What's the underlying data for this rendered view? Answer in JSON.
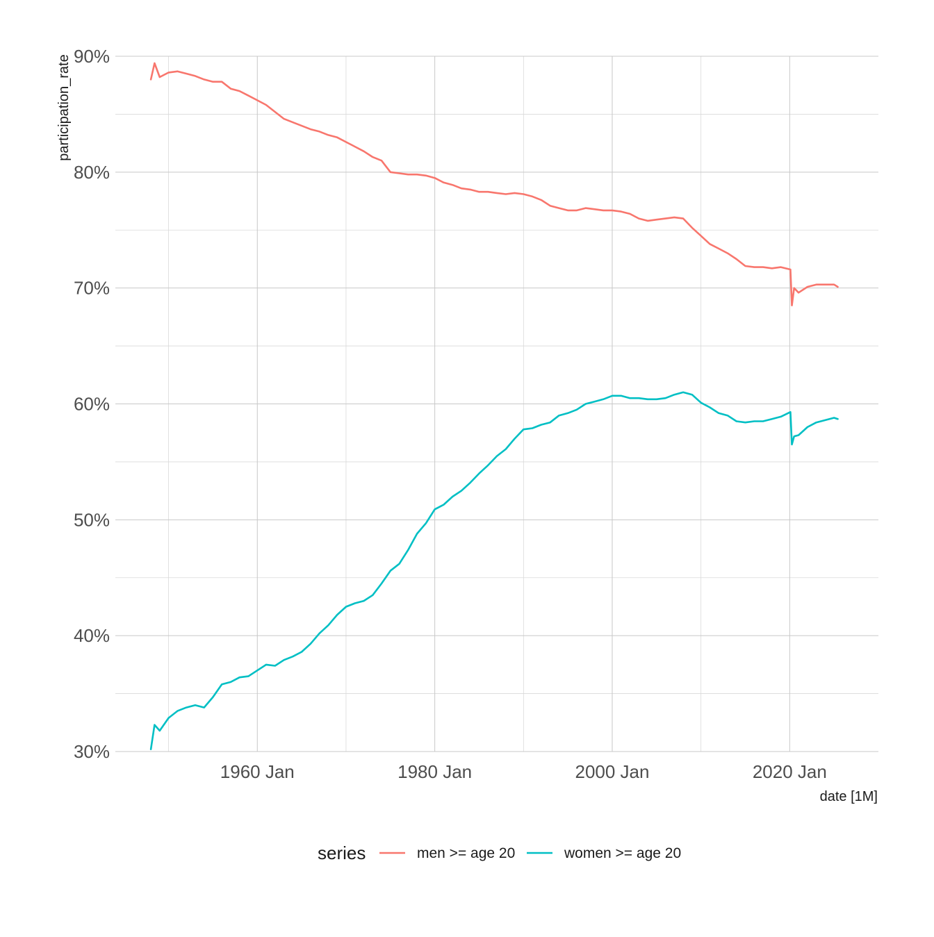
{
  "chart_data": {
    "type": "line",
    "xlabel": "date [1M]",
    "ylabel": "participation_rate",
    "xlim": [
      "1944-01",
      "2030-01"
    ],
    "ylim": [
      0.3,
      0.9
    ],
    "x_ticks": [
      {
        "value": "1960-01",
        "label": "1960 Jan"
      },
      {
        "value": "1980-01",
        "label": "1980 Jan"
      },
      {
        "value": "2000-01",
        "label": "2000 Jan"
      },
      {
        "value": "2020-01",
        "label": "2020 Jan"
      }
    ],
    "x_minor_ticks": [
      "1950-01",
      "1970-01",
      "1990-01",
      "2010-01"
    ],
    "y_ticks": [
      {
        "value": 0.3,
        "label": "30%"
      },
      {
        "value": 0.4,
        "label": "40%"
      },
      {
        "value": 0.5,
        "label": "50%"
      },
      {
        "value": 0.6,
        "label": "60%"
      },
      {
        "value": 0.7,
        "label": "70%"
      },
      {
        "value": 0.8,
        "label": "80%"
      },
      {
        "value": 0.9,
        "label": "90%"
      }
    ],
    "y_minor_ticks": [
      0.35,
      0.45,
      0.55,
      0.65,
      0.75,
      0.85
    ],
    "grid": true,
    "legend": {
      "title": "series",
      "position": "bottom"
    },
    "series": [
      {
        "name": "men >= age 20",
        "color": "#F8766D",
        "points": [
          [
            "1948-01",
            0.88
          ],
          [
            "1948-06",
            0.894
          ],
          [
            "1949-01",
            0.882
          ],
          [
            "1950-01",
            0.886
          ],
          [
            "1951-01",
            0.887
          ],
          [
            "1952-01",
            0.885
          ],
          [
            "1953-01",
            0.883
          ],
          [
            "1954-01",
            0.88
          ],
          [
            "1955-01",
            0.878
          ],
          [
            "1956-01",
            0.878
          ],
          [
            "1957-01",
            0.872
          ],
          [
            "1958-01",
            0.87
          ],
          [
            "1959-01",
            0.866
          ],
          [
            "1960-01",
            0.862
          ],
          [
            "1961-01",
            0.858
          ],
          [
            "1962-01",
            0.852
          ],
          [
            "1963-01",
            0.846
          ],
          [
            "1964-01",
            0.843
          ],
          [
            "1965-01",
            0.84
          ],
          [
            "1966-01",
            0.837
          ],
          [
            "1967-01",
            0.835
          ],
          [
            "1968-01",
            0.832
          ],
          [
            "1969-01",
            0.83
          ],
          [
            "1970-01",
            0.826
          ],
          [
            "1971-01",
            0.822
          ],
          [
            "1972-01",
            0.818
          ],
          [
            "1973-01",
            0.813
          ],
          [
            "1974-01",
            0.81
          ],
          [
            "1975-01",
            0.8
          ],
          [
            "1976-01",
            0.799
          ],
          [
            "1977-01",
            0.798
          ],
          [
            "1978-01",
            0.798
          ],
          [
            "1979-01",
            0.797
          ],
          [
            "1980-01",
            0.795
          ],
          [
            "1981-01",
            0.791
          ],
          [
            "1982-01",
            0.789
          ],
          [
            "1983-01",
            0.786
          ],
          [
            "1984-01",
            0.785
          ],
          [
            "1985-01",
            0.783
          ],
          [
            "1986-01",
            0.783
          ],
          [
            "1987-01",
            0.782
          ],
          [
            "1988-01",
            0.781
          ],
          [
            "1989-01",
            0.782
          ],
          [
            "1990-01",
            0.781
          ],
          [
            "1991-01",
            0.779
          ],
          [
            "1992-01",
            0.776
          ],
          [
            "1993-01",
            0.771
          ],
          [
            "1994-01",
            0.769
          ],
          [
            "1995-01",
            0.767
          ],
          [
            "1996-01",
            0.767
          ],
          [
            "1997-01",
            0.769
          ],
          [
            "1998-01",
            0.768
          ],
          [
            "1999-01",
            0.767
          ],
          [
            "2000-01",
            0.767
          ],
          [
            "2001-01",
            0.766
          ],
          [
            "2002-01",
            0.764
          ],
          [
            "2003-01",
            0.76
          ],
          [
            "2004-01",
            0.758
          ],
          [
            "2005-01",
            0.759
          ],
          [
            "2006-01",
            0.76
          ],
          [
            "2007-01",
            0.761
          ],
          [
            "2008-01",
            0.76
          ],
          [
            "2009-01",
            0.752
          ],
          [
            "2010-01",
            0.745
          ],
          [
            "2011-01",
            0.738
          ],
          [
            "2012-01",
            0.734
          ],
          [
            "2013-01",
            0.73
          ],
          [
            "2014-01",
            0.725
          ],
          [
            "2015-01",
            0.719
          ],
          [
            "2016-01",
            0.718
          ],
          [
            "2017-01",
            0.718
          ],
          [
            "2018-01",
            0.717
          ],
          [
            "2019-01",
            0.718
          ],
          [
            "2020-02",
            0.716
          ],
          [
            "2020-04",
            0.685
          ],
          [
            "2020-07",
            0.7
          ],
          [
            "2021-01",
            0.696
          ],
          [
            "2022-01",
            0.701
          ],
          [
            "2023-01",
            0.703
          ],
          [
            "2024-01",
            0.703
          ],
          [
            "2025-01",
            0.703
          ],
          [
            "2025-06",
            0.701
          ]
        ]
      },
      {
        "name": "women >= age 20",
        "color": "#00BFC4",
        "points": [
          [
            "1948-01",
            0.302
          ],
          [
            "1948-06",
            0.323
          ],
          [
            "1949-01",
            0.318
          ],
          [
            "1950-01",
            0.329
          ],
          [
            "1951-01",
            0.335
          ],
          [
            "1952-01",
            0.338
          ],
          [
            "1953-01",
            0.34
          ],
          [
            "1954-01",
            0.338
          ],
          [
            "1955-01",
            0.347
          ],
          [
            "1956-01",
            0.358
          ],
          [
            "1957-01",
            0.36
          ],
          [
            "1958-01",
            0.364
          ],
          [
            "1959-01",
            0.365
          ],
          [
            "1960-01",
            0.37
          ],
          [
            "1961-01",
            0.375
          ],
          [
            "1962-01",
            0.374
          ],
          [
            "1963-01",
            0.379
          ],
          [
            "1964-01",
            0.382
          ],
          [
            "1965-01",
            0.386
          ],
          [
            "1966-01",
            0.393
          ],
          [
            "1967-01",
            0.402
          ],
          [
            "1968-01",
            0.409
          ],
          [
            "1969-01",
            0.418
          ],
          [
            "1970-01",
            0.425
          ],
          [
            "1971-01",
            0.428
          ],
          [
            "1972-01",
            0.43
          ],
          [
            "1973-01",
            0.435
          ],
          [
            "1974-01",
            0.445
          ],
          [
            "1975-01",
            0.456
          ],
          [
            "1976-01",
            0.462
          ],
          [
            "1977-01",
            0.474
          ],
          [
            "1978-01",
            0.488
          ],
          [
            "1979-01",
            0.497
          ],
          [
            "1980-01",
            0.509
          ],
          [
            "1981-01",
            0.513
          ],
          [
            "1982-01",
            0.52
          ],
          [
            "1983-01",
            0.525
          ],
          [
            "1984-01",
            0.532
          ],
          [
            "1985-01",
            0.54
          ],
          [
            "1986-01",
            0.547
          ],
          [
            "1987-01",
            0.555
          ],
          [
            "1988-01",
            0.561
          ],
          [
            "1989-01",
            0.57
          ],
          [
            "1990-01",
            0.578
          ],
          [
            "1991-01",
            0.579
          ],
          [
            "1992-01",
            0.582
          ],
          [
            "1993-01",
            0.584
          ],
          [
            "1994-01",
            0.59
          ],
          [
            "1995-01",
            0.592
          ],
          [
            "1996-01",
            0.595
          ],
          [
            "1997-01",
            0.6
          ],
          [
            "1998-01",
            0.602
          ],
          [
            "1999-01",
            0.604
          ],
          [
            "2000-01",
            0.607
          ],
          [
            "2001-01",
            0.607
          ],
          [
            "2002-01",
            0.605
          ],
          [
            "2003-01",
            0.605
          ],
          [
            "2004-01",
            0.604
          ],
          [
            "2005-01",
            0.604
          ],
          [
            "2006-01",
            0.605
          ],
          [
            "2007-01",
            0.608
          ],
          [
            "2008-01",
            0.61
          ],
          [
            "2009-01",
            0.608
          ],
          [
            "2010-01",
            0.601
          ],
          [
            "2011-01",
            0.597
          ],
          [
            "2012-01",
            0.592
          ],
          [
            "2013-01",
            0.59
          ],
          [
            "2014-01",
            0.585
          ],
          [
            "2015-01",
            0.584
          ],
          [
            "2016-01",
            0.585
          ],
          [
            "2017-01",
            0.585
          ],
          [
            "2018-01",
            0.587
          ],
          [
            "2019-01",
            0.589
          ],
          [
            "2020-02",
            0.593
          ],
          [
            "2020-04",
            0.565
          ],
          [
            "2020-07",
            0.572
          ],
          [
            "2021-01",
            0.573
          ],
          [
            "2022-01",
            0.58
          ],
          [
            "2023-01",
            0.584
          ],
          [
            "2024-01",
            0.586
          ],
          [
            "2025-01",
            0.588
          ],
          [
            "2025-06",
            0.587
          ]
        ]
      }
    ]
  }
}
